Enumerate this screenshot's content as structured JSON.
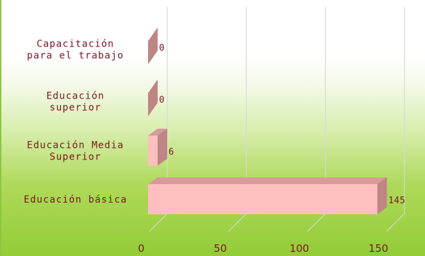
{
  "chart_data": {
    "type": "bar",
    "orientation": "horizontal",
    "style": "3d",
    "categories": [
      [
        "Capacitación",
        "para el trabajo"
      ],
      [
        "Educación",
        "superior"
      ],
      [
        "Educación Media",
        "Superior"
      ],
      [
        "Educación básica"
      ]
    ],
    "values": [
      0,
      0,
      6,
      145
    ],
    "data_labels": [
      "0",
      "0",
      "6",
      "145"
    ],
    "xlim": [
      0,
      150
    ],
    "ticks": [
      0,
      50,
      100,
      150
    ],
    "tick_labels": [
      "0",
      "50",
      "100",
      "150"
    ],
    "grid": true,
    "legend": "none",
    "colors": {
      "bar_front": "#ffbfbf",
      "bar_top": "#d99a9a",
      "bar_side": "#bf8585",
      "gridline": "#d8d8d8",
      "text": "#7a1522"
    }
  }
}
